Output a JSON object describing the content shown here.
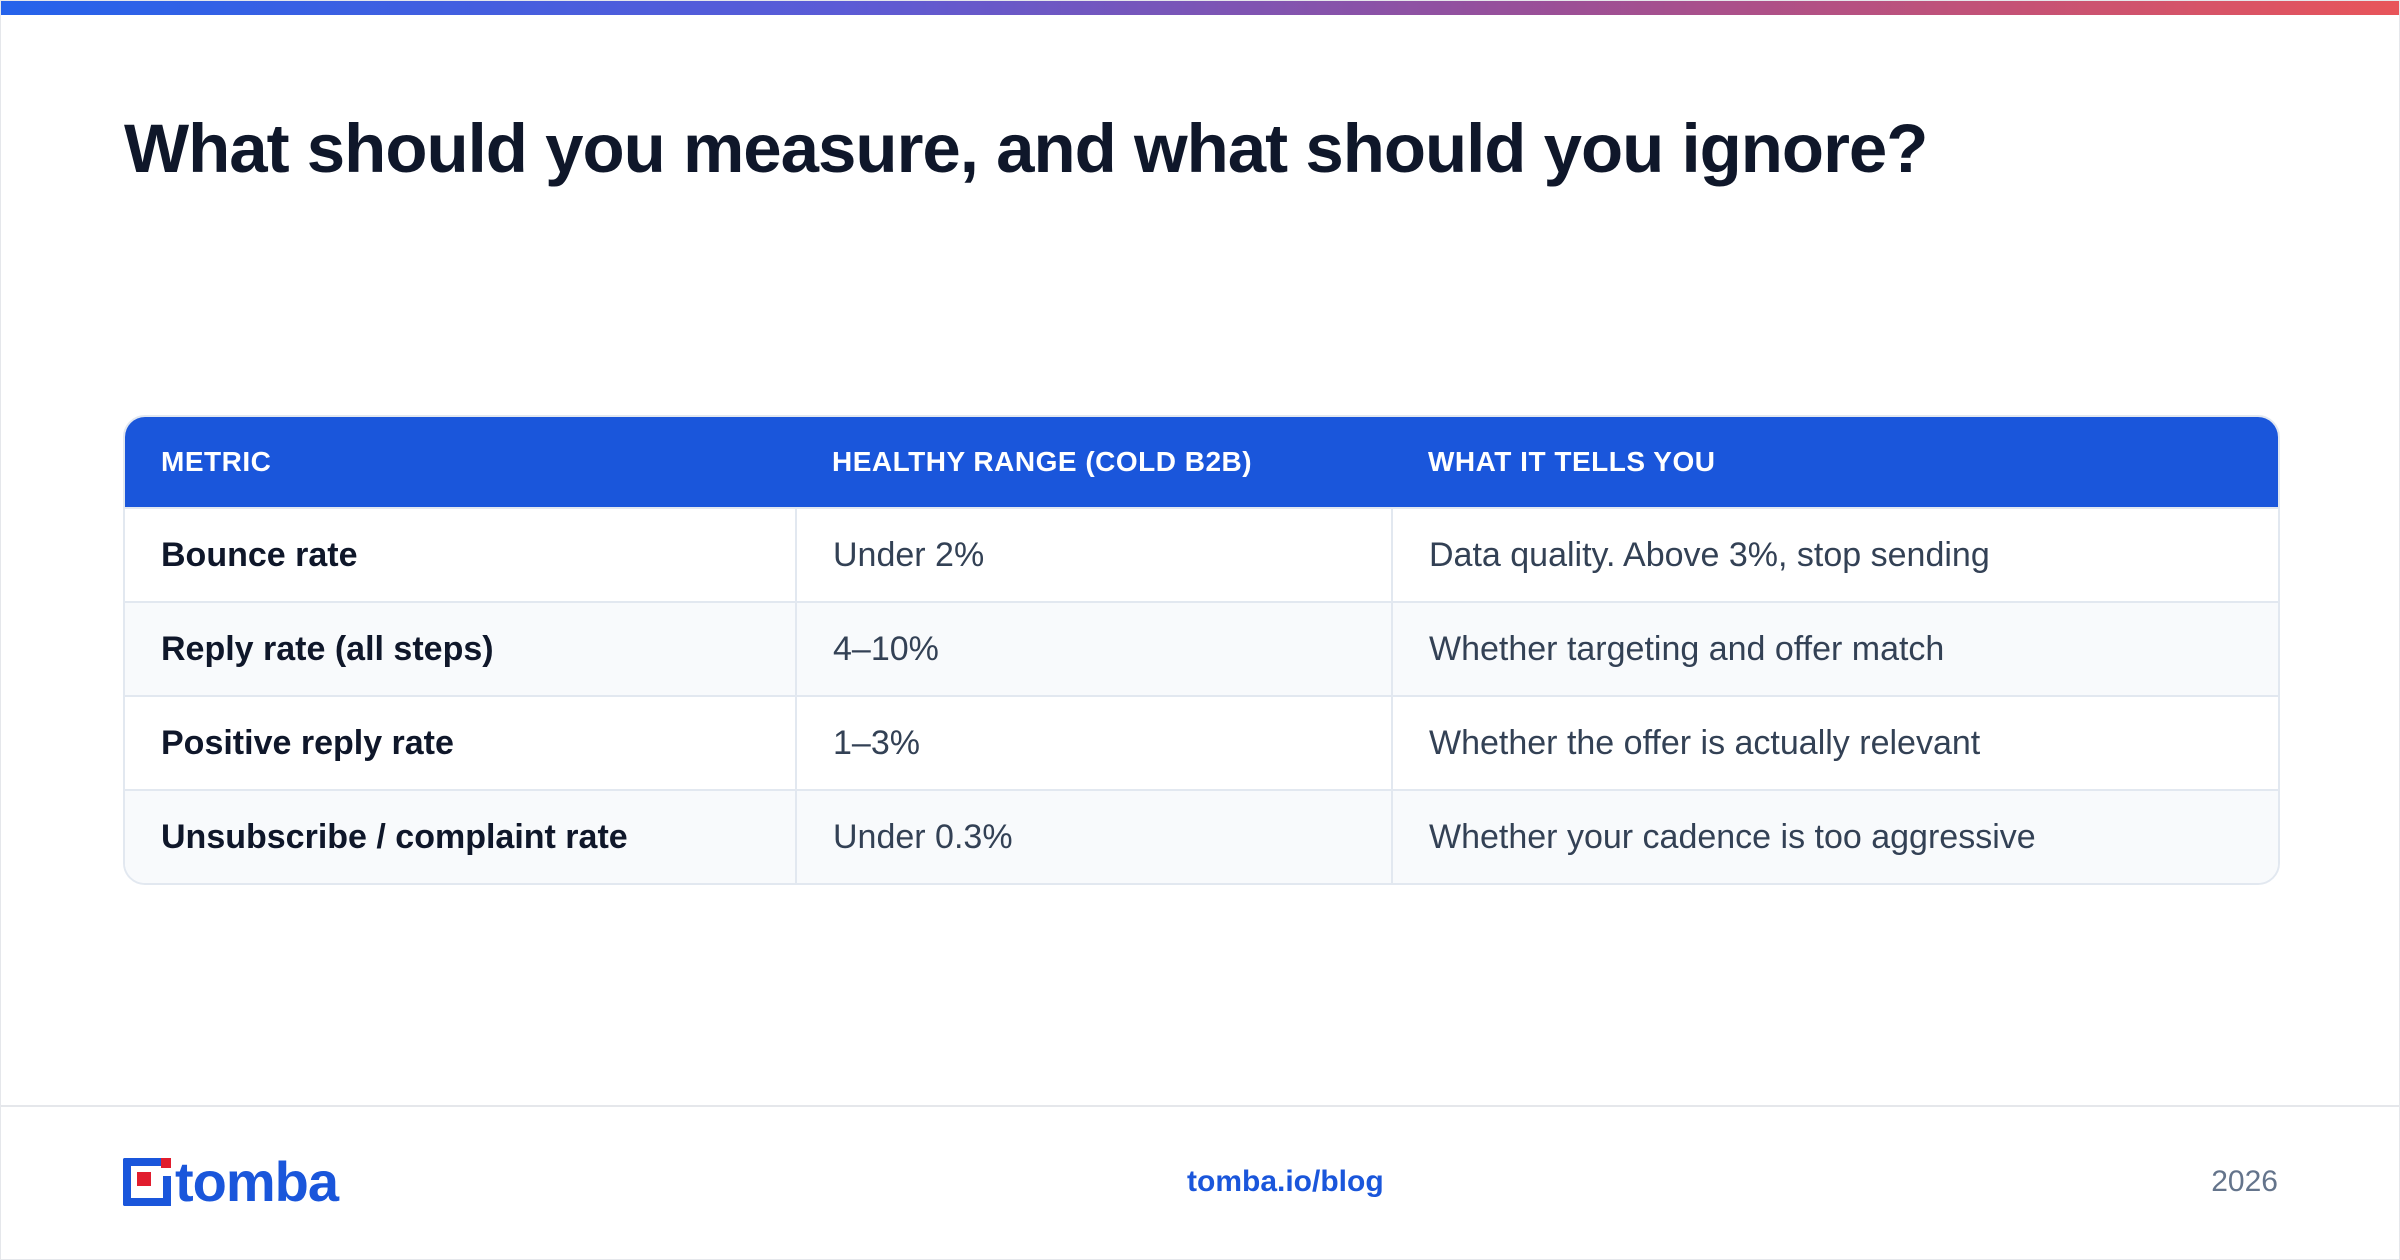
{
  "page": {
    "title": "What should you measure, and what should you ignore?",
    "accent_color": "#1a56db",
    "top_bar_gradient": [
      "#2563eb",
      "#9b4f96",
      "#e8555a"
    ]
  },
  "table": {
    "headers": [
      "METRIC",
      "HEALTHY RANGE (COLD B2B)",
      "WHAT IT TELLS YOU"
    ],
    "rows": [
      {
        "metric": "Bounce rate",
        "range": "Under 2%",
        "meaning": "Data quality. Above 3%, stop sending"
      },
      {
        "metric": "Reply rate (all steps)",
        "range": "4–10%",
        "meaning": "Whether targeting and offer match"
      },
      {
        "metric": "Positive reply rate",
        "range": "1–3%",
        "meaning": "Whether the offer is actually relevant"
      },
      {
        "metric": "Unsubscribe / complaint rate",
        "range": "Under 0.3%",
        "meaning": "Whether your cadence is too aggressive"
      }
    ]
  },
  "footer": {
    "logo_text": "tomba",
    "link": "tomba.io/blog",
    "year": "2026"
  }
}
